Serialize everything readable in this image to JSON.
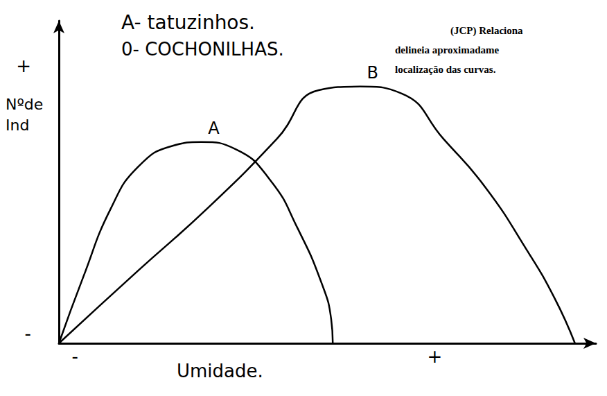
{
  "chart_data": {
    "type": "line",
    "annotations": [
      "A- tatuzinhos.",
      "0- COCHONILHAS.",
      "(JCP) Relaciona",
      "delineia aproximadame",
      "localização das curvas."
    ],
    "x_label": "Umidade.",
    "y_label": "Nºde Ind",
    "xlim": [
      0,
      100
    ],
    "ylim": [
      0,
      100
    ],
    "xticks": [
      {
        "value": 3,
        "label": "-"
      },
      {
        "value": 70,
        "label": "+"
      }
    ],
    "yticks": [
      {
        "value": 3,
        "label": "-"
      },
      {
        "value": 86,
        "label": "+"
      }
    ],
    "grid": false,
    "series": [
      {
        "name": "A",
        "color": "#000000",
        "line_style": "solid",
        "x": [
          0,
          4.5,
          9.7,
          14.8,
          21.3,
          26.5,
          32.9,
          39.4,
          44.5,
          49,
          50.7,
          51
        ],
        "values": [
          0,
          20.4,
          41.9,
          54.8,
          61.3,
          62.4,
          60.2,
          50.5,
          35.5,
          18.3,
          7.5,
          0
        ]
      },
      {
        "name": "B",
        "color": "#000000",
        "line_style": "solid",
        "x": [
          0,
          14.8,
          27.7,
          40.6,
          48.4,
          56.1,
          63.9,
          71.6,
          79.4,
          87.1,
          92.3,
          96.1
        ],
        "values": [
          0,
          22.6,
          41.9,
          63.4,
          78.5,
          79.6,
          77.4,
          63.4,
          48.4,
          29,
          14,
          0
        ]
      }
    ]
  }
}
